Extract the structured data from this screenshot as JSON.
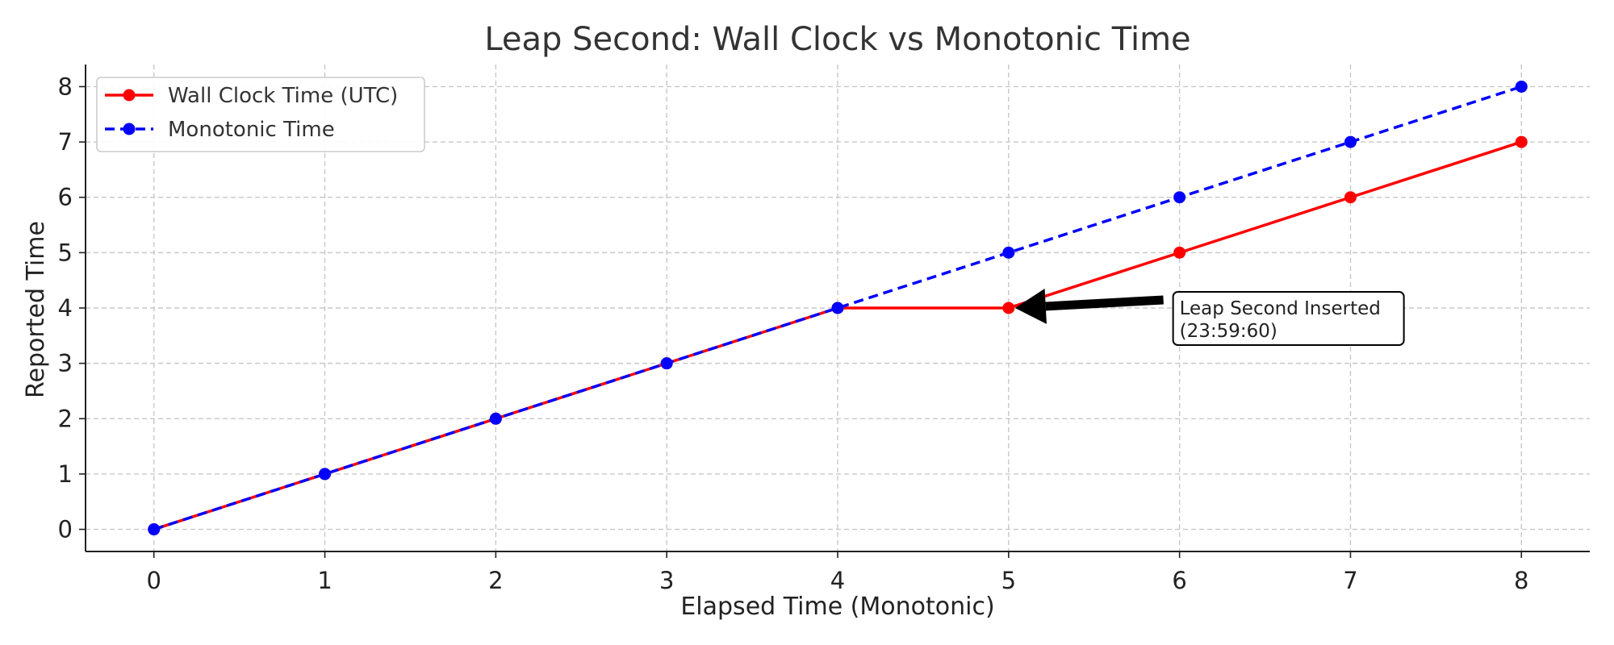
{
  "chart_data": {
    "type": "line",
    "title": "Leap Second: Wall Clock vs Monotonic Time",
    "xlabel": "Elapsed Time (Monotonic)",
    "ylabel": "Reported Time",
    "x": [
      0,
      1,
      2,
      3,
      4,
      5,
      6,
      7,
      8
    ],
    "xlim": [
      -0.4,
      8.4
    ],
    "ylim": [
      -0.4,
      8.4
    ],
    "xticks": [
      "0",
      "1",
      "2",
      "3",
      "4",
      "5",
      "6",
      "7",
      "8"
    ],
    "yticks": [
      "0",
      "1",
      "2",
      "3",
      "4",
      "5",
      "6",
      "7",
      "8"
    ],
    "grid": true,
    "legend_position": "top-left",
    "series": [
      {
        "name": "Wall Clock Time (UTC)",
        "values": [
          0,
          1,
          2,
          3,
          4,
          4,
          5,
          6,
          7
        ],
        "color": "#ff0000",
        "line_style": "solid",
        "marker": "circle"
      },
      {
        "name": "Monotonic Time",
        "values": [
          0,
          1,
          2,
          3,
          4,
          5,
          6,
          7,
          8
        ],
        "color": "#0000ff",
        "line_style": "dashed",
        "marker": "circle"
      }
    ],
    "annotations": [
      {
        "lines": [
          "Leap Second Inserted",
          "(23:59:60)"
        ],
        "points_to": [
          5,
          4
        ],
        "text_at": [
          6,
          4
        ]
      }
    ]
  }
}
